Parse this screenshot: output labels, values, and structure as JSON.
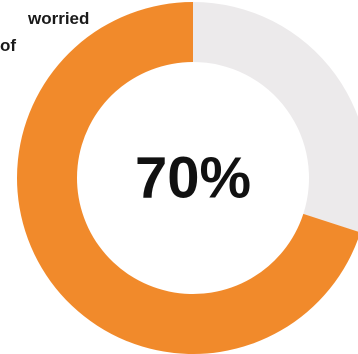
{
  "caption": {
    "line1": "worried",
    "line2": "of"
  },
  "colors": {
    "filled": "#F18A2B",
    "remainder": "#ECEAEB",
    "text": "#111111"
  },
  "chart_data": {
    "type": "pie",
    "variant": "donut",
    "title": "",
    "center_label": "70%",
    "slices": [
      {
        "label": "",
        "value": 70
      },
      {
        "label": "",
        "value": 30
      }
    ]
  }
}
